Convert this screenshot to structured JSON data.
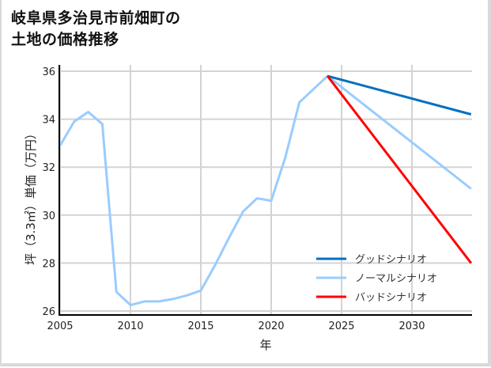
{
  "title": {
    "line1": "岐阜県多治見市前畑町の",
    "line2": "土地の価格推移"
  },
  "chart_data": {
    "type": "line",
    "title": "岐阜県多治見市前畑町の土地の価格推移",
    "xlabel": "年",
    "ylabel": "坪（3.3㎡）単価（万円）",
    "xlim": [
      2005,
      2034.2
    ],
    "ylim": [
      25.9,
      36.1
    ],
    "xticks": [
      2005,
      2010,
      2015,
      2020,
      2025,
      2030
    ],
    "yticks": [
      26,
      28,
      30,
      32,
      34,
      36
    ],
    "grid": true,
    "legend_position": "lower right",
    "series": [
      {
        "name": "グッドシナリオ",
        "color": "#0070c0",
        "x": [
          2024,
          2034.2
        ],
        "values": [
          35.8,
          34.2
        ]
      },
      {
        "name": "ノーマルシナリオ",
        "color": "#99ccff",
        "x": [
          2005,
          2006,
          2007,
          2008,
          2009,
          2010,
          2011,
          2012,
          2013,
          2014,
          2015,
          2016,
          2017,
          2018,
          2019,
          2020,
          2021,
          2022,
          2023,
          2024,
          2034.2
        ],
        "values": [
          32.9,
          33.9,
          34.3,
          33.8,
          26.8,
          26.25,
          26.4,
          26.4,
          26.5,
          26.65,
          26.85,
          27.9,
          29.05,
          30.15,
          30.7,
          30.6,
          32.4,
          34.7,
          35.25,
          35.8,
          31.1
        ]
      },
      {
        "name": "バッドシナリオ",
        "color": "#ff0000",
        "x": [
          2024,
          2034.2
        ],
        "values": [
          35.8,
          28.0
        ]
      }
    ]
  },
  "axis": {
    "xlabel": "年",
    "ylabel": "坪（3.3㎡）単価（万円）",
    "xtick_labels": [
      "2005",
      "2010",
      "2015",
      "2020",
      "2025",
      "2030"
    ],
    "ytick_labels": [
      "26",
      "28",
      "30",
      "32",
      "34",
      "36"
    ]
  },
  "legend": [
    {
      "label": "グッドシナリオ",
      "color": "#0070c0"
    },
    {
      "label": "ノーマルシナリオ",
      "color": "#99ccff"
    },
    {
      "label": "バッドシナリオ",
      "color": "#ff0000"
    }
  ],
  "colors": {
    "grid": "#d3d3d3",
    "axis": "#000000",
    "frame": "#d9d9d9"
  }
}
